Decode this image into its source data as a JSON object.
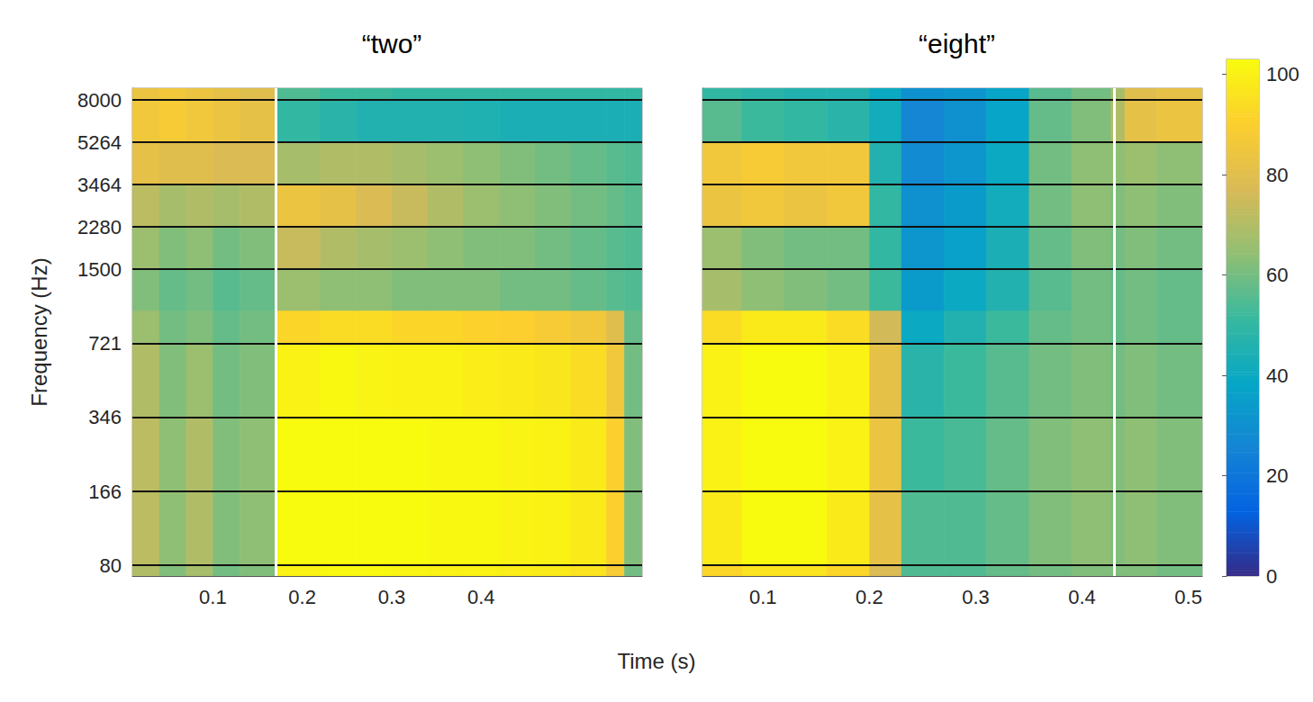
{
  "chart_data": [
    {
      "type": "heatmap",
      "title": "“two”",
      "x_label": "Time (s)",
      "y_label": "Frequency (Hz)",
      "log": "y",
      "grid": true,
      "xlim": [
        0.01,
        0.58
      ],
      "xticks": [
        0.1,
        0.2,
        0.3,
        0.4
      ],
      "ylim": [
        72,
        9000
      ],
      "yticks": [
        80,
        166,
        346,
        721,
        1500,
        2280,
        3464,
        5264,
        8000
      ],
      "markers": [
        0.172
      ],
      "x_edges": [
        0.01,
        0.04,
        0.07,
        0.1,
        0.13,
        0.172,
        0.22,
        0.26,
        0.3,
        0.34,
        0.38,
        0.42,
        0.46,
        0.5,
        0.54,
        0.56,
        0.58
      ],
      "y_edges": [
        72,
        80,
        166,
        346,
        721,
        1000,
        1500,
        2280,
        3464,
        5264,
        8000,
        9000
      ],
      "cells": [
        [
          70,
          62,
          68,
          60,
          62,
          100,
          102,
          102,
          101,
          100,
          100,
          99,
          98,
          96,
          88,
          60
        ],
        [
          72,
          64,
          70,
          62,
          64,
          103,
          104,
          104,
          103,
          102,
          102,
          101,
          100,
          98,
          90,
          62
        ],
        [
          72,
          64,
          70,
          62,
          64,
          103,
          104,
          104,
          103,
          102,
          102,
          101,
          100,
          98,
          90,
          62
        ],
        [
          70,
          62,
          66,
          60,
          62,
          100,
          102,
          101,
          100,
          100,
          99,
          98,
          97,
          94,
          86,
          60
        ],
        [
          66,
          60,
          62,
          58,
          60,
          92,
          94,
          94,
          92,
          92,
          91,
          90,
          88,
          86,
          80,
          58
        ],
        [
          62,
          58,
          60,
          56,
          58,
          66,
          64,
          64,
          62,
          62,
          62,
          60,
          60,
          58,
          56,
          55
        ],
        [
          66,
          62,
          64,
          60,
          62,
          74,
          70,
          68,
          66,
          64,
          62,
          62,
          60,
          58,
          56,
          55
        ],
        [
          72,
          68,
          70,
          68,
          70,
          84,
          82,
          78,
          74,
          70,
          66,
          64,
          62,
          60,
          58,
          56
        ],
        [
          82,
          80,
          80,
          78,
          78,
          68,
          70,
          70,
          68,
          66,
          64,
          62,
          60,
          58,
          56,
          55
        ],
        [
          86,
          88,
          86,
          84,
          82,
          50,
          48,
          46,
          46,
          46,
          45,
          44,
          44,
          44,
          44,
          44
        ],
        [
          84,
          86,
          84,
          82,
          80,
          55,
          52,
          52,
          50,
          50,
          50,
          50,
          50,
          50,
          50,
          50
        ]
      ]
    },
    {
      "type": "heatmap",
      "title": "“eight”",
      "tick_labels": "x",
      "log": "y",
      "grid": true,
      "xlim": [
        0.043,
        0.513
      ],
      "xticks": [
        0.1,
        0.2,
        0.3,
        0.4,
        0.5
      ],
      "ylim": [
        72,
        9000
      ],
      "yticks": [
        80,
        166,
        346,
        721,
        1500,
        2280,
        3464,
        5264,
        8000
      ],
      "markers": [
        0.427
      ],
      "x_edges": [
        0.043,
        0.08,
        0.12,
        0.16,
        0.2,
        0.23,
        0.27,
        0.31,
        0.35,
        0.39,
        0.427,
        0.44,
        0.47,
        0.513
      ],
      "y_edges": [
        72,
        80,
        166,
        346,
        721,
        1000,
        1500,
        2280,
        3464,
        5264,
        8000,
        9000
      ],
      "cells": [
        [
          92,
          96,
          96,
          92,
          78,
          55,
          55,
          58,
          60,
          62,
          62,
          62,
          60
        ],
        [
          98,
          104,
          104,
          98,
          82,
          55,
          55,
          58,
          62,
          64,
          62,
          64,
          62
        ],
        [
          100,
          106,
          106,
          100,
          84,
          52,
          54,
          58,
          62,
          64,
          62,
          64,
          62
        ],
        [
          100,
          106,
          106,
          100,
          82,
          48,
          52,
          56,
          60,
          62,
          60,
          62,
          60
        ],
        [
          94,
          98,
          98,
          94,
          76,
          40,
          46,
          52,
          58,
          60,
          58,
          60,
          58
        ],
        [
          68,
          64,
          62,
          60,
          52,
          34,
          40,
          46,
          56,
          60,
          58,
          60,
          58
        ],
        [
          66,
          62,
          60,
          60,
          50,
          32,
          36,
          44,
          58,
          62,
          60,
          62,
          60
        ],
        [
          84,
          86,
          84,
          86,
          50,
          30,
          34,
          42,
          60,
          64,
          62,
          64,
          62
        ],
        [
          86,
          88,
          86,
          86,
          46,
          28,
          32,
          40,
          60,
          64,
          64,
          66,
          64
        ],
        [
          56,
          52,
          50,
          48,
          42,
          26,
          30,
          38,
          58,
          62,
          70,
          82,
          84
        ],
        [
          50,
          48,
          46,
          46,
          40,
          30,
          32,
          38,
          56,
          60,
          68,
          80,
          82
        ]
      ],
      "colorbar": {
        "range": [
          0,
          103
        ],
        "ticks": [
          0,
          20,
          40,
          60,
          80,
          100
        ]
      }
    }
  ]
}
